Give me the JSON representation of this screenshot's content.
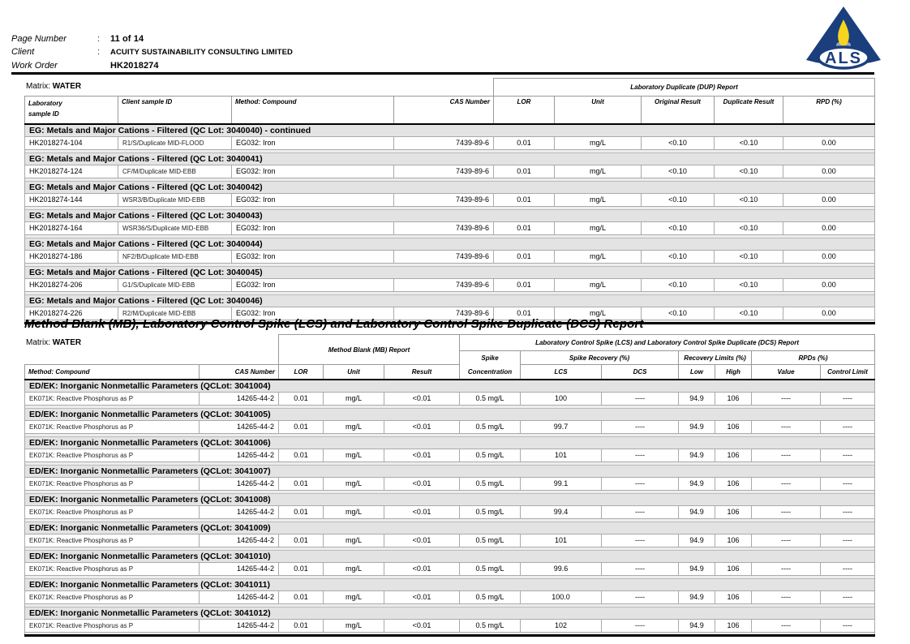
{
  "header": {
    "fields": [
      {
        "label": "Page Number",
        "colon": ":",
        "value": "11 of 14"
      },
      {
        "label": "Client",
        "colon": ":",
        "value": "ACUITY SUSTAINABILITY CONSULTING LIMITED"
      },
      {
        "label": "Work Order",
        "colon": ":",
        "value": "HK2018274"
      }
    ],
    "logo_text": "ALS",
    "logo_colors": {
      "navy": "#1b3e7d",
      "flame_yellow": "#f6d41f",
      "base_gray": "#93a3ba"
    }
  },
  "dup_table": {
    "matrix_prefix": "Matrix:",
    "matrix_value": "WATER",
    "span_header": "Laboratory Duplicate (DUP) Report",
    "columns": [
      "Laboratory\nsample ID",
      "Client sample ID",
      "Method: Compound",
      "CAS Number",
      "LOR",
      "Unit",
      "Original Result",
      "Duplicate Result",
      "RPD (%)"
    ],
    "groups": [
      {
        "title": "EG: Metals and Major Cations - Filtered  (QC Lot: 3040040)  - continued",
        "rows": [
          [
            "HK2018274-104",
            "R1/S/Duplicate MID-FLOOD",
            "EG032: Iron",
            "7439-89-6",
            "0.01",
            "mg/L",
            "<0.10",
            "<0.10",
            "0.00"
          ]
        ]
      },
      {
        "title": "EG: Metals and Major Cations - Filtered  (QC Lot: 3040041)",
        "rows": [
          [
            "HK2018274-124",
            "CF/M/Duplicate MID-EBB",
            "EG032: Iron",
            "7439-89-6",
            "0.01",
            "mg/L",
            "<0.10",
            "<0.10",
            "0.00"
          ]
        ]
      },
      {
        "title": "EG: Metals and Major Cations - Filtered  (QC Lot: 3040042)",
        "rows": [
          [
            "HK2018274-144",
            "WSR3/B/Duplicate MID-EBB",
            "EG032: Iron",
            "7439-89-6",
            "0.01",
            "mg/L",
            "<0.10",
            "<0.10",
            "0.00"
          ]
        ]
      },
      {
        "title": "EG: Metals and Major Cations - Filtered  (QC Lot: 3040043)",
        "rows": [
          [
            "HK2018274-164",
            "WSR36/S/Duplicate MID-EBB",
            "EG032: Iron",
            "7439-89-6",
            "0.01",
            "mg/L",
            "<0.10",
            "<0.10",
            "0.00"
          ]
        ]
      },
      {
        "title": "EG: Metals and Major Cations - Filtered  (QC Lot: 3040044)",
        "rows": [
          [
            "HK2018274-186",
            "NF2/B/Duplicate MID-EBB",
            "EG032: Iron",
            "7439-89-6",
            "0.01",
            "mg/L",
            "<0.10",
            "<0.10",
            "0.00"
          ]
        ]
      },
      {
        "title": "EG: Metals and Major Cations - Filtered  (QC Lot: 3040045)",
        "rows": [
          [
            "HK2018274-206",
            "G1/S/Duplicate MID-EBB",
            "EG032: Iron",
            "7439-89-6",
            "0.01",
            "mg/L",
            "<0.10",
            "<0.10",
            "0.00"
          ]
        ]
      },
      {
        "title": "EG: Metals and Major Cations - Filtered  (QC Lot: 3040046)",
        "rows": [
          [
            "HK2018274-226",
            "R2/M/Duplicate MID-EBB",
            "EG032: Iron",
            "7439-89-6",
            "0.01",
            "mg/L",
            "<0.10",
            "<0.10",
            "0.00"
          ]
        ]
      }
    ]
  },
  "section_title": "Method Blank (MB), Laboratory Control Spike (LCS) and Laboratory Control Spike Duplicate (DCS) Report",
  "mb_table": {
    "matrix_prefix": "Matrix:",
    "matrix_value": "WATER",
    "mb_span": "Method Blank (MB) Report",
    "lcs_span": "Laboratory Control Spike (LCS) and Laboratory Control Spike Duplicate (DCS) Report",
    "spike_label": "Spike",
    "spike_recovery": "Spike Recovery (%)",
    "recovery_limits": "Recovery Limits (%)",
    "rpds": "RPDs (%)",
    "columns": [
      "Method: Compound",
      "CAS Number",
      "LOR",
      "Unit",
      "Result",
      "Concentration",
      "LCS",
      "DCS",
      "Low",
      "High",
      "Value",
      "Control Limit"
    ],
    "groups": [
      {
        "title": "ED/EK: Inorganic Nonmetallic Parameters  (QCLot: 3041004)",
        "rows": [
          [
            "EK071K: Reactive Phosphorus as P",
            "14265-44-2",
            "0.01",
            "mg/L",
            "<0.01",
            "0.5 mg/L",
            "100",
            "----",
            "94.9",
            "106",
            "----",
            "----"
          ]
        ]
      },
      {
        "title": "ED/EK: Inorganic Nonmetallic Parameters  (QCLot: 3041005)",
        "rows": [
          [
            "EK071K: Reactive Phosphorus as P",
            "14265-44-2",
            "0.01",
            "mg/L",
            "<0.01",
            "0.5 mg/L",
            "99.7",
            "----",
            "94.9",
            "106",
            "----",
            "----"
          ]
        ]
      },
      {
        "title": "ED/EK: Inorganic Nonmetallic Parameters  (QCLot: 3041006)",
        "rows": [
          [
            "EK071K: Reactive Phosphorus as P",
            "14265-44-2",
            "0.01",
            "mg/L",
            "<0.01",
            "0.5 mg/L",
            "101",
            "----",
            "94.9",
            "106",
            "----",
            "----"
          ]
        ]
      },
      {
        "title": "ED/EK: Inorganic Nonmetallic Parameters  (QCLot: 3041007)",
        "rows": [
          [
            "EK071K: Reactive Phosphorus as P",
            "14265-44-2",
            "0.01",
            "mg/L",
            "<0.01",
            "0.5 mg/L",
            "99.1",
            "----",
            "94.9",
            "106",
            "----",
            "----"
          ]
        ]
      },
      {
        "title": "ED/EK: Inorganic Nonmetallic Parameters  (QCLot: 3041008)",
        "rows": [
          [
            "EK071K: Reactive Phosphorus as P",
            "14265-44-2",
            "0.01",
            "mg/L",
            "<0.01",
            "0.5 mg/L",
            "99.4",
            "----",
            "94.9",
            "106",
            "----",
            "----"
          ]
        ]
      },
      {
        "title": "ED/EK: Inorganic Nonmetallic Parameters  (QCLot: 3041009)",
        "rows": [
          [
            "EK071K: Reactive Phosphorus as P",
            "14265-44-2",
            "0.01",
            "mg/L",
            "<0.01",
            "0.5 mg/L",
            "101",
            "----",
            "94.9",
            "106",
            "----",
            "----"
          ]
        ]
      },
      {
        "title": "ED/EK: Inorganic Nonmetallic Parameters  (QCLot: 3041010)",
        "rows": [
          [
            "EK071K: Reactive Phosphorus as P",
            "14265-44-2",
            "0.01",
            "mg/L",
            "<0.01",
            "0.5 mg/L",
            "99.6",
            "----",
            "94.9",
            "106",
            "----",
            "----"
          ]
        ]
      },
      {
        "title": "ED/EK: Inorganic Nonmetallic Parameters  (QCLot: 3041011)",
        "rows": [
          [
            "EK071K: Reactive Phosphorus as P",
            "14265-44-2",
            "0.01",
            "mg/L",
            "<0.01",
            "0.5 mg/L",
            "100.0",
            "----",
            "94.9",
            "106",
            "----",
            "----"
          ]
        ]
      },
      {
        "title": "ED/EK: Inorganic Nonmetallic Parameters  (QCLot: 3041012)",
        "rows": [
          [
            "EK071K: Reactive Phosphorus as P",
            "14265-44-2",
            "0.01",
            "mg/L",
            "<0.01",
            "0.5 mg/L",
            "102",
            "----",
            "94.9",
            "106",
            "----",
            "----"
          ]
        ]
      }
    ]
  }
}
